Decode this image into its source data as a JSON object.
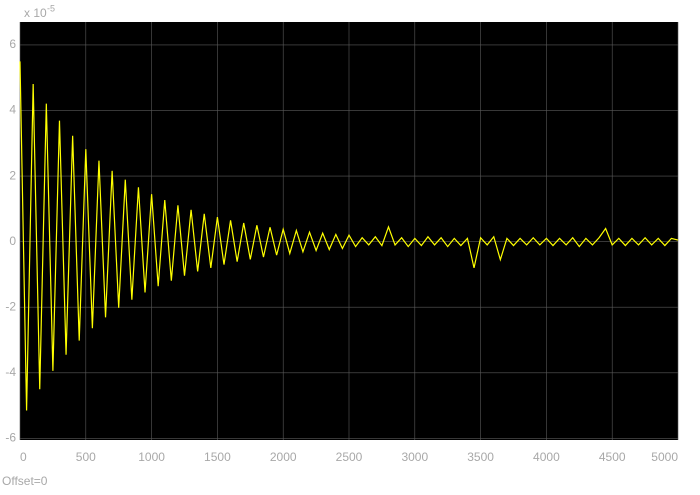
{
  "chart_data": {
    "type": "line",
    "y_multiplier": "x 10",
    "y_exponent": "-5",
    "footer": "Offset=0",
    "x": [
      0,
      50,
      100,
      150,
      200,
      250,
      300,
      350,
      400,
      450,
      500,
      550,
      600,
      650,
      700,
      750,
      800,
      850,
      900,
      950,
      1000,
      1050,
      1100,
      1150,
      1200,
      1250,
      1300,
      1350,
      1400,
      1450,
      1500,
      1550,
      1600,
      1650,
      1700,
      1750,
      1800,
      1850,
      1900,
      1950,
      2000,
      2050,
      2100,
      2150,
      2200,
      2250,
      2300,
      2350,
      2400,
      2450,
      2500,
      2550,
      2600,
      2650,
      2700,
      2750,
      2800,
      2850,
      2900,
      2950,
      3000,
      3050,
      3100,
      3150,
      3200,
      3250,
      3300,
      3350,
      3400,
      3450,
      3500,
      3550,
      3600,
      3650,
      3700,
      3750,
      3800,
      3850,
      3900,
      3950,
      4000,
      4050,
      4100,
      4150,
      4200,
      4250,
      4300,
      4350,
      4400,
      4450,
      4500,
      4550,
      4600,
      4650,
      4700,
      4750,
      4800,
      4850,
      4900,
      4950,
      5000
    ],
    "series": [
      {
        "color": "#ffff00",
        "values": [
          5.5,
          -5.15,
          4.81,
          -4.5,
          4.21,
          -3.94,
          3.69,
          -3.45,
          3.23,
          -3.02,
          2.82,
          -2.64,
          2.47,
          -2.31,
          2.16,
          -2.02,
          1.89,
          -1.77,
          1.66,
          -1.55,
          1.45,
          -1.36,
          1.27,
          -1.19,
          1.11,
          -1.04,
          0.97,
          -0.91,
          0.85,
          -0.8,
          0.75,
          -0.7,
          0.65,
          -0.61,
          0.57,
          -0.54,
          0.5,
          -0.47,
          0.44,
          -0.41,
          0.38,
          -0.36,
          0.34,
          -0.31,
          0.29,
          -0.27,
          0.26,
          -0.24,
          0.22,
          -0.21,
          0.2,
          -0.15,
          0.12,
          -0.1,
          0.15,
          -0.12,
          0.45,
          -0.1,
          0.12,
          -0.15,
          0.1,
          -0.12,
          0.15,
          -0.1,
          0.12,
          -0.15,
          0.1,
          -0.12,
          0.1,
          -0.8,
          0.12,
          -0.1,
          0.15,
          -0.55,
          0.1,
          -0.12,
          0.1,
          -0.1,
          0.12,
          -0.1,
          0.1,
          -0.12,
          0.1,
          -0.1,
          0.12,
          -0.15,
          0.1,
          -0.1,
          0.12,
          0.4,
          -0.1,
          0.1,
          -0.12,
          0.1,
          -0.1,
          0.12,
          -0.1,
          0.1,
          -0.12,
          0.1,
          0.05
        ]
      }
    ],
    "xlim": [
      0,
      5000
    ],
    "xticks": [
      0,
      500,
      1000,
      1500,
      2000,
      2500,
      3000,
      3500,
      4000,
      4500,
      5000
    ],
    "ylim": [
      -6.05,
      6.7
    ],
    "yticks": [
      -6,
      -4,
      -2,
      0,
      2,
      4,
      6
    ],
    "grid": true
  }
}
